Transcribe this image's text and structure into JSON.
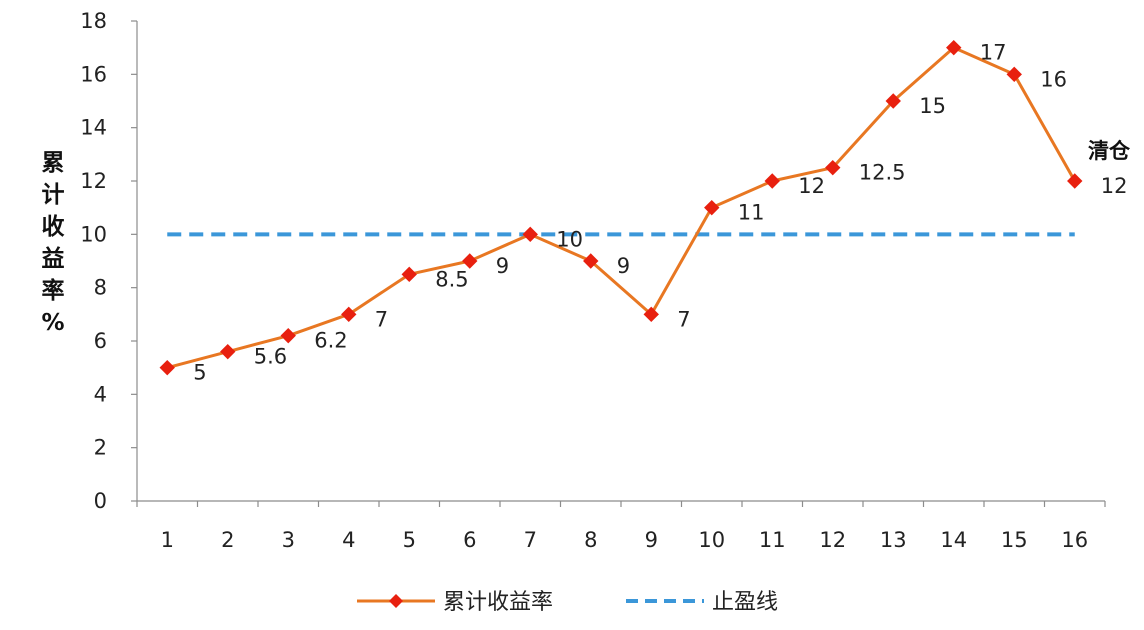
{
  "chart_data": {
    "type": "line",
    "x": [
      1,
      2,
      3,
      4,
      5,
      6,
      7,
      8,
      9,
      10,
      11,
      12,
      13,
      14,
      15,
      16
    ],
    "series": [
      {
        "name": "累计收益率",
        "values": [
          5,
          5.6,
          6.2,
          7,
          8.5,
          9,
          10,
          9,
          7,
          11,
          12,
          12.5,
          15,
          17,
          16,
          12
        ],
        "labels": [
          "5",
          "5.6",
          "6.2",
          "7",
          "8.5",
          "9",
          "10",
          "9",
          "7",
          "11",
          "12",
          "12.5",
          "15",
          "17",
          "16",
          "12"
        ],
        "color": "#E87722",
        "marker": "diamond",
        "marker_color": "#E8200F"
      },
      {
        "name": "止盈线",
        "values": [
          10,
          10,
          10,
          10,
          10,
          10,
          10,
          10,
          10,
          10,
          10,
          10,
          10,
          10,
          10,
          10
        ],
        "color": "#3B97D9",
        "style": "dashed"
      }
    ],
    "ylim": [
      0,
      18
    ],
    "yticks": [
      0,
      2,
      4,
      6,
      8,
      10,
      12,
      14,
      16,
      18
    ],
    "xlabel": "",
    "ylabel_chars": [
      "累",
      "计",
      "收",
      "益",
      "率",
      "%"
    ],
    "annotation": "清仓",
    "grid": false,
    "legend_position": "bottom"
  }
}
